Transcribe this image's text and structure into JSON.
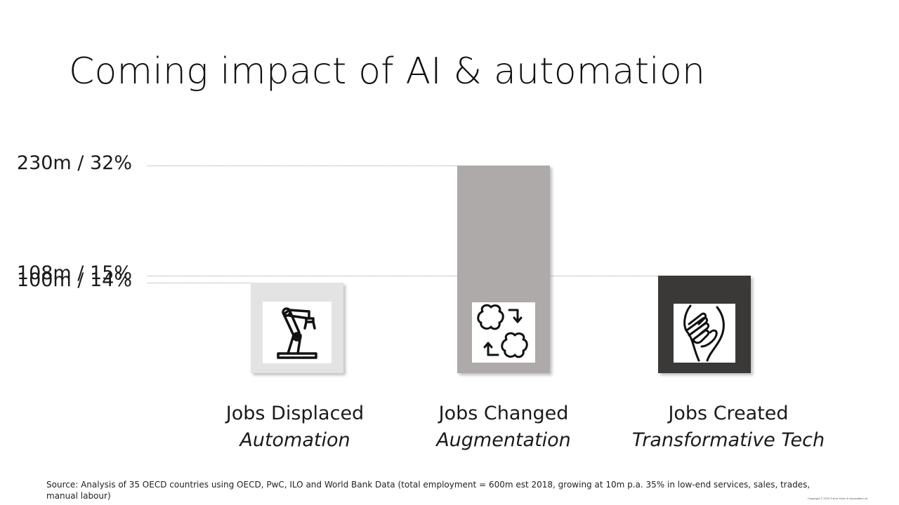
{
  "title": "Coming impact of AI & automation",
  "chart_data": {
    "type": "bar",
    "categories": [
      {
        "name": "Jobs Displaced",
        "subtitle": "Automation",
        "icon": "robot-arm-icon",
        "color": "#e3e3e3"
      },
      {
        "name": "Jobs Changed",
        "subtitle": "Augmentation",
        "icon": "brains-exchange-icon",
        "color": "#adaaa9"
      },
      {
        "name": "Jobs Created",
        "subtitle": "Transformative Tech",
        "icon": "helping-hands-icon",
        "color": "#3a3938"
      }
    ],
    "values": [
      100,
      230,
      108
    ],
    "value_labels": [
      "100m / 14%",
      "230m / 32%",
      "108m / 15%"
    ],
    "ylim": [
      0,
      230
    ],
    "grid": false
  },
  "source": "Source: Analysis of 35 OECD countries using OECD, PwC, ILO and World Bank Data (total employment = 600m est 2018, growing at 10m p.a.  35% in low-end services, sales, trades, manual labour)",
  "copyright": "Copyright © 2019 Trevor Dunn & Associates Ltd"
}
